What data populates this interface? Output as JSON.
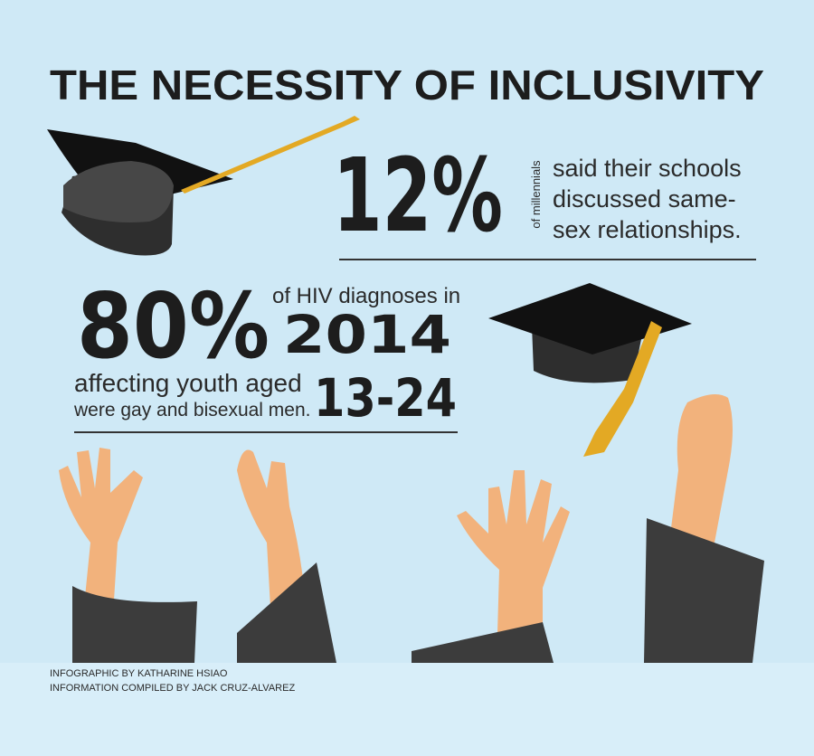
{
  "title": "THE NECESSITY OF INCLUSIVITY",
  "stat_1": {
    "number": "12%",
    "qualifier": "of millennials",
    "lines": [
      "said their schools",
      "discussed same-",
      "sex relationships."
    ]
  },
  "stat_2": {
    "number": "80%",
    "line_1": "of HIV diagnoses in",
    "year": "2014",
    "line_2": "affecting youth aged",
    "ages": "13-24",
    "line_3": "were gay and bisexual men."
  },
  "credits": [
    "INFOGRAPHIC BY KATHARINE HSIAO",
    "INFORMATION COMPILED BY JACK CRUZ-ALVAREZ"
  ]
}
